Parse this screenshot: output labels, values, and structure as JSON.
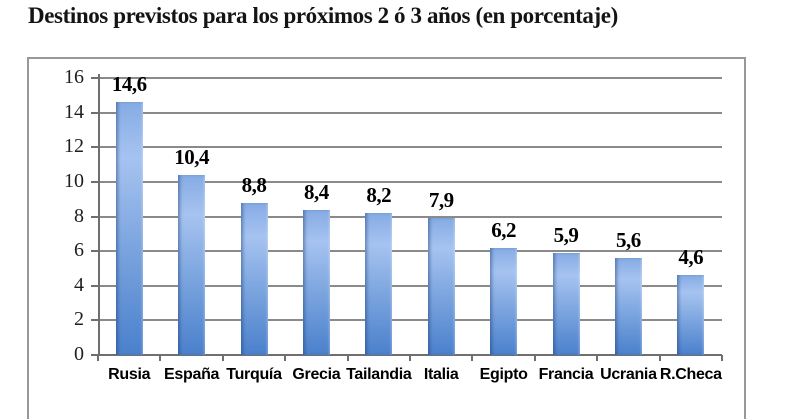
{
  "title": "Destinos previstos para los próximos 2 ó 3 años (en porcentaje)",
  "chart_data": {
    "type": "bar",
    "title": "Destinos previstos para los próximos 2 ó 3 años (en porcentaje)",
    "categories": [
      "Rusia",
      "España",
      "Turquía",
      "Grecia",
      "Tailandia",
      "Italia",
      "Egipto",
      "Francia",
      "Ucrania",
      "R.Checa"
    ],
    "values": [
      14.6,
      10.4,
      8.8,
      8.4,
      8.2,
      7.9,
      6.2,
      5.9,
      5.6,
      4.6
    ],
    "value_labels": [
      "14,6",
      "10,4",
      "8,8",
      "8,4",
      "8,2",
      "7,9",
      "6,2",
      "5,9",
      "5,6",
      "4,6"
    ],
    "xlabel": "",
    "ylabel": "",
    "ylim": [
      0,
      16
    ],
    "yticks": [
      0,
      2,
      4,
      6,
      8,
      10,
      12,
      14,
      16
    ],
    "grid": true,
    "legend_position": "none",
    "decimal_separator": ","
  },
  "colors": {
    "bar_gradient_top": "#85abe4",
    "bar_gradient_light": "#a6c3f0",
    "bar_gradient_bottom": "#4a80cc",
    "bar_left_edge": "#3f6cb4",
    "gridline": "#8a8a8a",
    "axis": "#6f6f6f",
    "frame_border": "#989898",
    "title_text": "#141414",
    "label_text": "#000000",
    "background": "#ffffff"
  }
}
